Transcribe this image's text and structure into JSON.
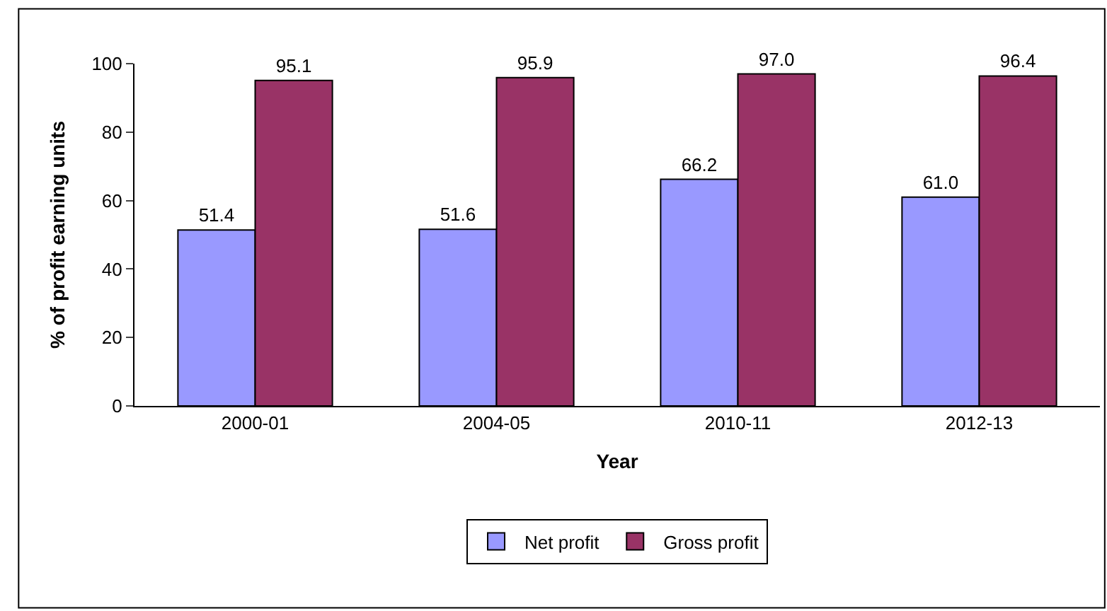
{
  "chart_data": {
    "type": "bar",
    "xlabel": "Year",
    "ylabel": "% of profit earning units",
    "categories": [
      "2000-01",
      "2004-05",
      "2010-11",
      "2012-13"
    ],
    "series": [
      {
        "name": "Net profit",
        "color": "#9999ff",
        "values": [
          51.4,
          51.6,
          66.2,
          61.0
        ],
        "value_labels": [
          "51.4",
          "51.6",
          "66.2",
          "61.0"
        ]
      },
      {
        "name": "Gross profit",
        "color": "#993366",
        "values": [
          95.1,
          95.9,
          97.0,
          96.4
        ],
        "value_labels": [
          "95.1",
          "95.9",
          "97.0",
          "96.4"
        ]
      }
    ],
    "ylim": [
      0,
      100
    ],
    "yticks": [
      0,
      20,
      40,
      60,
      80,
      100
    ],
    "grid": false,
    "legend": "bottom"
  }
}
